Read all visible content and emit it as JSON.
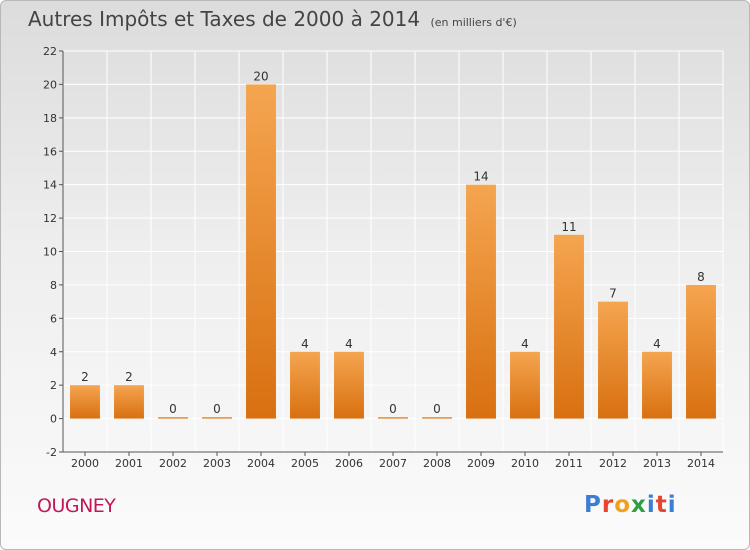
{
  "header": {
    "title": "Autres Impôts et Taxes de 2000 à 2014",
    "subtitle": "(en milliers d'€)"
  },
  "footer": {
    "place": "OUGNEY",
    "logo_text": "Proxiti",
    "logo_colors": [
      "#3a7fd5",
      "#e8452f",
      "#f0a020",
      "#2f9e44",
      "#3a7fd5",
      "#e8452f",
      "#3a7fd5"
    ]
  },
  "chart_data": {
    "type": "bar",
    "title": "Autres Impôts et Taxes de 2000 à 2014",
    "subtitle": "(en milliers d'€)",
    "categories": [
      "2000",
      "2001",
      "2002",
      "2003",
      "2004",
      "2005",
      "2006",
      "2007",
      "2008",
      "2009",
      "2010",
      "2011",
      "2012",
      "2013",
      "2014"
    ],
    "values": [
      2,
      2,
      0,
      0,
      20,
      4,
      4,
      0,
      0,
      14,
      4,
      11,
      7,
      4,
      8
    ],
    "ylim": [
      -2,
      22
    ],
    "yticks": [
      -2,
      0,
      2,
      4,
      6,
      8,
      10,
      12,
      14,
      16,
      18,
      20,
      22
    ],
    "grid": true,
    "colors": {
      "bar_top": "#f5a550",
      "bar_bottom": "#d87010",
      "grid": "#ffffff"
    }
  }
}
